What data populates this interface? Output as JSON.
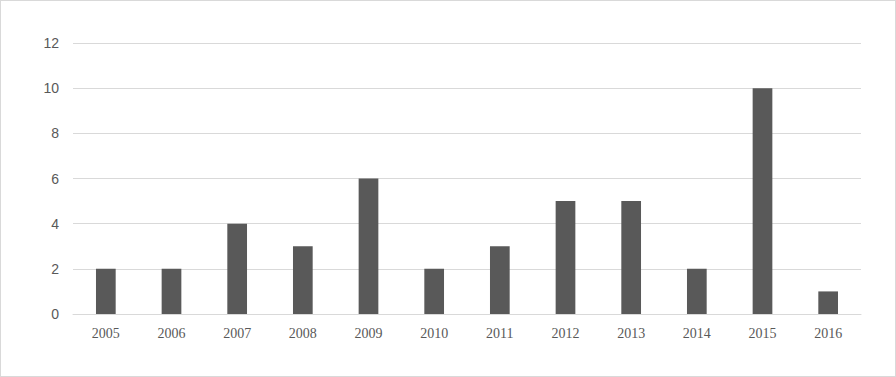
{
  "chart_data": {
    "type": "bar",
    "categories": [
      "2005",
      "2006",
      "2007",
      "2008",
      "2009",
      "2010",
      "2011",
      "2012",
      "2013",
      "2014",
      "2015",
      "2016"
    ],
    "values": [
      2,
      2,
      4,
      3,
      6,
      2,
      3,
      5,
      5,
      2,
      10,
      1
    ],
    "color": "#595959",
    "ylim": [
      0,
      12
    ],
    "yticks": [
      0,
      2,
      4,
      6,
      8,
      10,
      12
    ],
    "grid": true
  }
}
